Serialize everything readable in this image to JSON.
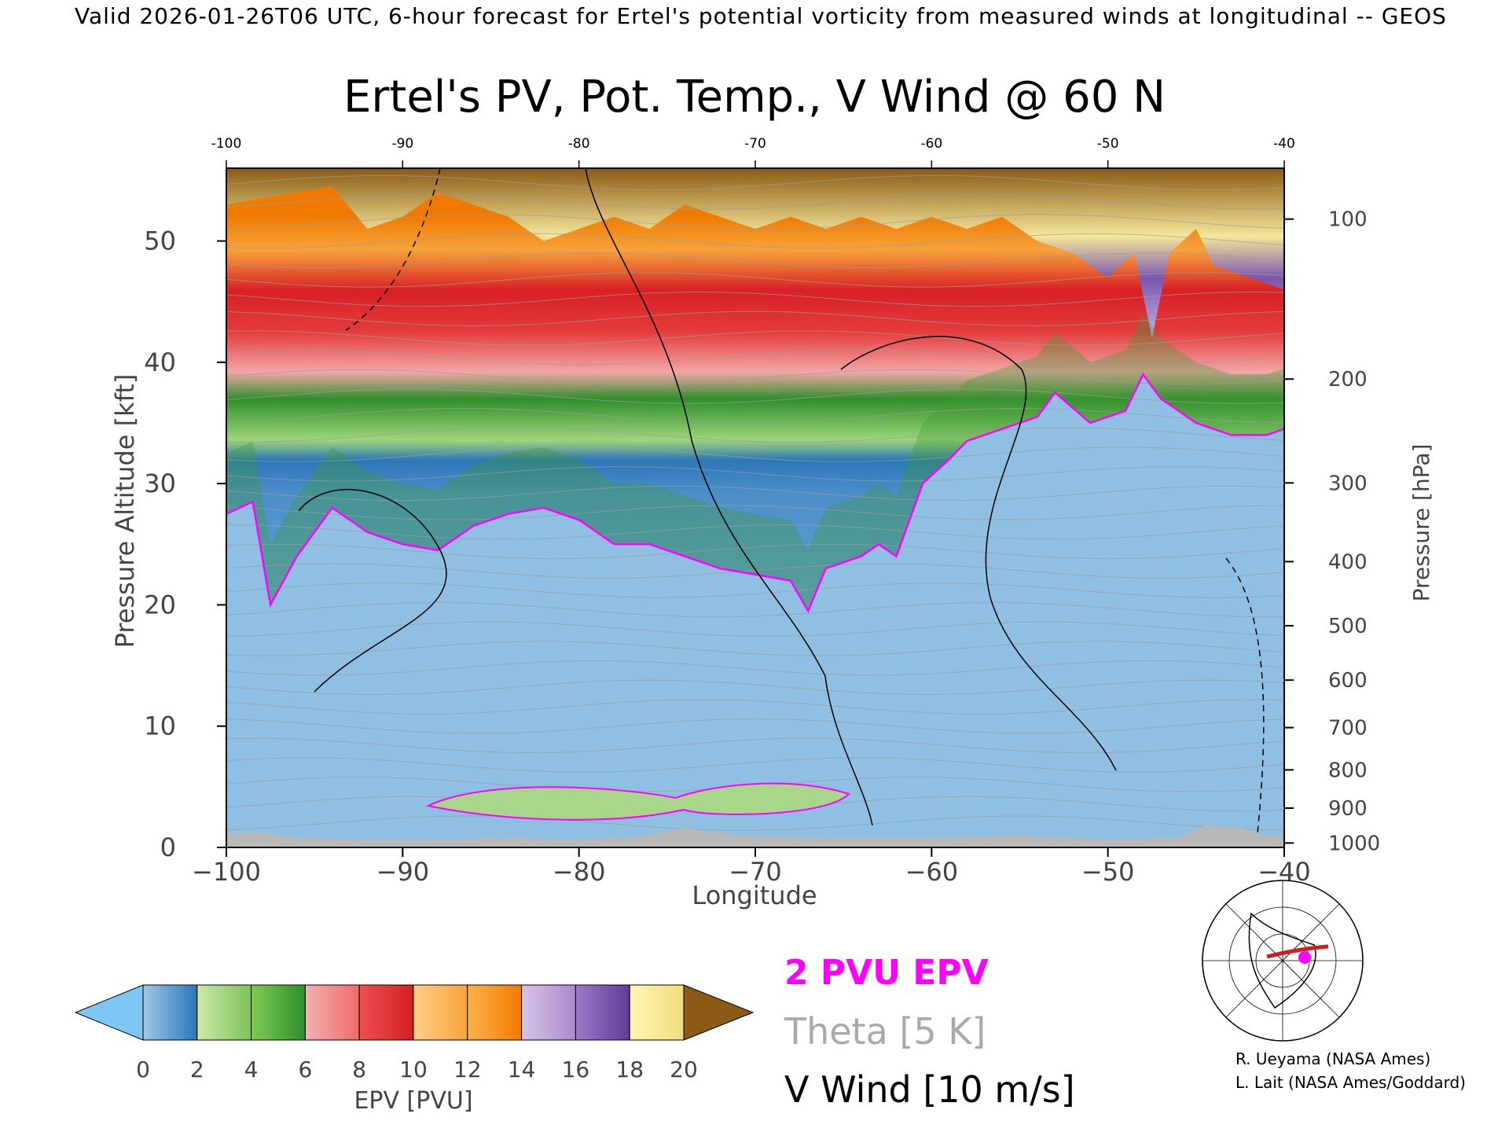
{
  "header": {
    "banner": "Valid 2026-01-26T06 UTC, 6-hour forecast for Ertel's potential vorticity from measured winds at longitudinal -- GEOS"
  },
  "chart_data": {
    "type": "heatmap",
    "title": "Ertel's PV, Pot. Temp., V Wind @ 60 N",
    "xlabel": "Longitude",
    "ylabel": "Pressure Altitude [kft]",
    "y2label": "Pressure [hPa]",
    "xlim": [
      -100,
      -40
    ],
    "ylim": [
      0,
      56
    ],
    "x_ticks": [
      -100,
      -90,
      -80,
      -70,
      -60,
      -50,
      -40
    ],
    "x_tick_labels": [
      "−100",
      "−90",
      "−80",
      "−70",
      "−60",
      "−50",
      "−40"
    ],
    "top_tick_labels": [
      "-100",
      "-90",
      "-80",
      "-70",
      "-60",
      "-50",
      "-40"
    ],
    "y_ticks": [
      0,
      10,
      20,
      30,
      40,
      50
    ],
    "y_tick_labels": [
      "0",
      "10",
      "20",
      "30",
      "40",
      "50"
    ],
    "pressure_ticks": [
      {
        "hpa": 100,
        "label": "100"
      },
      {
        "hpa": 200,
        "label": "200"
      },
      {
        "hpa": 300,
        "label": "300"
      },
      {
        "hpa": 400,
        "label": "400"
      },
      {
        "hpa": 500,
        "label": "500"
      },
      {
        "hpa": 600,
        "label": "600"
      },
      {
        "hpa": 700,
        "label": "700"
      },
      {
        "hpa": 800,
        "label": "800"
      },
      {
        "hpa": 900,
        "label": "900"
      },
      {
        "hpa": 1000,
        "label": "1000"
      }
    ],
    "tropopause_2pvu_kft": [
      {
        "lon": -100,
        "alt": 27.5
      },
      {
        "lon": -98.5,
        "alt": 28.5
      },
      {
        "lon": -97.5,
        "alt": 20
      },
      {
        "lon": -96,
        "alt": 24
      },
      {
        "lon": -94,
        "alt": 28
      },
      {
        "lon": -92,
        "alt": 26
      },
      {
        "lon": -90,
        "alt": 25
      },
      {
        "lon": -88,
        "alt": 24.5
      },
      {
        "lon": -86,
        "alt": 26.5
      },
      {
        "lon": -84,
        "alt": 27.5
      },
      {
        "lon": -82,
        "alt": 28
      },
      {
        "lon": -80,
        "alt": 27
      },
      {
        "lon": -78,
        "alt": 25
      },
      {
        "lon": -76,
        "alt": 25
      },
      {
        "lon": -74,
        "alt": 24
      },
      {
        "lon": -72,
        "alt": 23
      },
      {
        "lon": -70,
        "alt": 22.5
      },
      {
        "lon": -68,
        "alt": 22
      },
      {
        "lon": -67,
        "alt": 19.5
      },
      {
        "lon": -66,
        "alt": 23
      },
      {
        "lon": -64,
        "alt": 24
      },
      {
        "lon": -63,
        "alt": 25
      },
      {
        "lon": -62,
        "alt": 24
      },
      {
        "lon": -60.5,
        "alt": 30
      },
      {
        "lon": -59,
        "alt": 32
      },
      {
        "lon": -58,
        "alt": 33.5
      },
      {
        "lon": -56,
        "alt": 34.5
      },
      {
        "lon": -54,
        "alt": 35.5
      },
      {
        "lon": -53,
        "alt": 37.5
      },
      {
        "lon": -51,
        "alt": 35
      },
      {
        "lon": -49,
        "alt": 36
      },
      {
        "lon": -48,
        "alt": 39
      },
      {
        "lon": -47,
        "alt": 37
      },
      {
        "lon": -45,
        "alt": 35
      },
      {
        "lon": -43,
        "alt": 34
      },
      {
        "lon": -41,
        "alt": 34
      },
      {
        "lon": -40,
        "alt": 34.5
      }
    ],
    "upper_pv_band_kft": [
      {
        "lon": -100,
        "alt": 53
      },
      {
        "lon": -96,
        "alt": 54
      },
      {
        "lon": -94,
        "alt": 54.5
      },
      {
        "lon": -92,
        "alt": 51
      },
      {
        "lon": -90,
        "alt": 52
      },
      {
        "lon": -88,
        "alt": 54
      },
      {
        "lon": -86,
        "alt": 53
      },
      {
        "lon": -84,
        "alt": 52
      },
      {
        "lon": -82,
        "alt": 50
      },
      {
        "lon": -80,
        "alt": 51
      },
      {
        "lon": -78,
        "alt": 52
      },
      {
        "lon": -76,
        "alt": 51
      },
      {
        "lon": -74,
        "alt": 53
      },
      {
        "lon": -72,
        "alt": 52
      },
      {
        "lon": -70,
        "alt": 51
      },
      {
        "lon": -68,
        "alt": 52
      },
      {
        "lon": -66,
        "alt": 51
      },
      {
        "lon": -64,
        "alt": 52
      },
      {
        "lon": -62,
        "alt": 51
      },
      {
        "lon": -60,
        "alt": 52
      },
      {
        "lon": -58,
        "alt": 51
      },
      {
        "lon": -56,
        "alt": 52
      },
      {
        "lon": -54,
        "alt": 50
      },
      {
        "lon": -52,
        "alt": 49
      },
      {
        "lon": -50,
        "alt": 47
      },
      {
        "lon": -48.5,
        "alt": 49
      },
      {
        "lon": -47.5,
        "alt": 42
      },
      {
        "lon": -46.5,
        "alt": 49
      },
      {
        "lon": -45,
        "alt": 51
      },
      {
        "lon": -44,
        "alt": 48
      },
      {
        "lon": -42,
        "alt": 47
      },
      {
        "lon": -40,
        "alt": 46
      }
    ],
    "colorbar": {
      "label": "EPV [PVU]",
      "min": 0,
      "max": 20,
      "tick_values": [
        0,
        2,
        4,
        6,
        8,
        10,
        12,
        14,
        16,
        18,
        20
      ],
      "tick_labels": [
        "0",
        "2",
        "4",
        "6",
        "8",
        "10",
        "12",
        "14",
        "16",
        "18",
        "20"
      ],
      "under_color": "#7ec7f5",
      "over_color": "#8b5a14",
      "bands": [
        {
          "from": "#9fc8e6",
          "to": "#2c77b8"
        },
        {
          "from": "#cbe9a8",
          "to": "#7fc25a"
        },
        {
          "from": "#7fcb55",
          "to": "#2f8f2c"
        },
        {
          "from": "#f2b2b0",
          "to": "#f06a6a"
        },
        {
          "from": "#f05050",
          "to": "#d41e24"
        },
        {
          "from": "#ffd08a",
          "to": "#f7a33a"
        },
        {
          "from": "#ffb24a",
          "to": "#f07a00"
        },
        {
          "from": "#d8c4e6",
          "to": "#a98ad0"
        },
        {
          "from": "#9a7cc8",
          "to": "#5f3b98"
        },
        {
          "from": "#fff6b8",
          "to": "#f0dd7a"
        }
      ]
    },
    "legend": [
      {
        "label": "2 PVU EPV",
        "color": "#ff00ff"
      },
      {
        "label": "Theta [5 K]",
        "color": "#a9a9a9"
      },
      {
        "label": "V Wind [10 m/s]",
        "color": "#000000"
      }
    ]
  },
  "credits": {
    "line1": "R. Ueyama (NASA Ames)",
    "line2": "L. Lait (NASA Ames/Goddard)"
  },
  "inset_map": {
    "icon": "polar-globe-icon",
    "track_color": "#cc1f1f",
    "point_color": "#ff00ff"
  }
}
